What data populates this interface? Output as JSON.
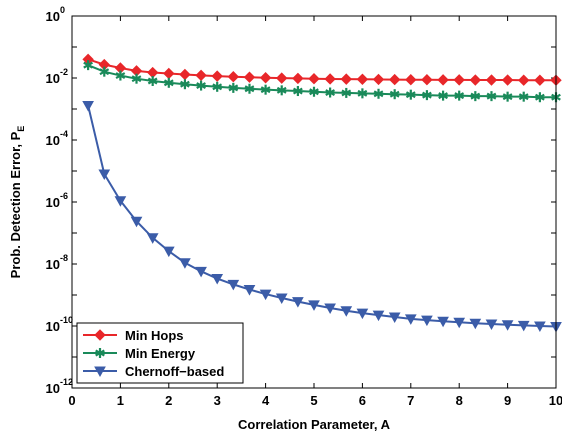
{
  "chart_data": {
    "type": "line",
    "xlabel": "Correlation Parameter, A",
    "ylabel_main": "Prob. Detection Error, P",
    "ylabel_sub": "E",
    "xlim": [
      0,
      10
    ],
    "ylim_log10": [
      -12,
      0
    ],
    "yscale": "log",
    "legend_position": "bottom-left",
    "grid": false,
    "x_ticks": [
      "0",
      "1",
      "2",
      "3",
      "4",
      "5",
      "6",
      "7",
      "8",
      "9",
      "10"
    ],
    "y_ticks": [
      {
        "base": "10",
        "exp": "0"
      },
      {
        "base": "10",
        "exp": "-2"
      },
      {
        "base": "10",
        "exp": "-4"
      },
      {
        "base": "10",
        "exp": "-6"
      },
      {
        "base": "10",
        "exp": "-8"
      },
      {
        "base": "10",
        "exp": "-10"
      },
      {
        "base": "10",
        "exp": "-12"
      }
    ],
    "x": [
      0.333,
      0.667,
      1.0,
      1.333,
      1.667,
      2.0,
      2.333,
      2.667,
      3.0,
      3.333,
      3.667,
      4.0,
      4.333,
      4.667,
      5.0,
      5.333,
      5.667,
      6.0,
      6.333,
      6.667,
      7.0,
      7.333,
      7.667,
      8.0,
      8.333,
      8.667,
      9.0,
      9.333,
      9.667,
      10.0
    ],
    "series": [
      {
        "name": "Min Hops",
        "color": "#e8272a",
        "marker": "diamond",
        "values": [
          0.04,
          0.027,
          0.021,
          0.017,
          0.015,
          0.014,
          0.013,
          0.0122,
          0.0115,
          0.011,
          0.0106,
          0.0102,
          0.0099,
          0.0097,
          0.0095,
          0.0093,
          0.0092,
          0.0091,
          0.009,
          0.0089,
          0.0088,
          0.0088,
          0.0087,
          0.0087,
          0.0086,
          0.0086,
          0.0086,
          0.0085,
          0.0085,
          0.0085
        ]
      },
      {
        "name": "Min Energy",
        "color": "#1a8a5a",
        "marker": "star",
        "values": [
          0.026,
          0.016,
          0.012,
          0.0095,
          0.008,
          0.007,
          0.0063,
          0.0057,
          0.0052,
          0.0048,
          0.0045,
          0.0042,
          0.004,
          0.0038,
          0.0036,
          0.0034,
          0.0033,
          0.0032,
          0.0031,
          0.003,
          0.0029,
          0.0028,
          0.0027,
          0.0027,
          0.0026,
          0.0026,
          0.0025,
          0.0025,
          0.0024,
          0.0024
        ]
      },
      {
        "name": "Chernoff−based",
        "color": "#3b5ca8",
        "marker": "triangle-down",
        "values": [
          0.0013,
          8e-06,
          1.1e-06,
          2.4e-07,
          7e-08,
          2.6e-08,
          1.1e-08,
          5.8e-09,
          3.4e-09,
          2.2e-09,
          1.5e-09,
          1.07e-09,
          8e-10,
          6.1e-10,
          4.8e-10,
          3.8e-10,
          3.1e-10,
          2.6e-10,
          2.25e-10,
          1.95e-10,
          1.7e-10,
          1.55e-10,
          1.42e-10,
          1.32e-10,
          1.23e-10,
          1.16e-10,
          1.1e-10,
          1.05e-10,
          1e-10,
          9.6e-11
        ]
      }
    ]
  }
}
